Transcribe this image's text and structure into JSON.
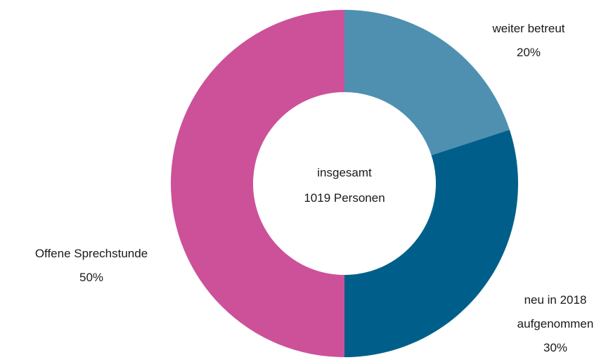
{
  "chart_data": {
    "type": "pie",
    "categories": [
      "weiter betreut",
      "neu in 2018 aufgenommen",
      "Offene Sprechstunde"
    ],
    "values": [
      20,
      30,
      50
    ],
    "value_labels": [
      "20%",
      "30%",
      "50%"
    ],
    "colors": [
      "#4f90b1",
      "#005f8a",
      "#cc5199"
    ],
    "annotations": [
      "insgesamt",
      "1019 Personen"
    ]
  }
}
